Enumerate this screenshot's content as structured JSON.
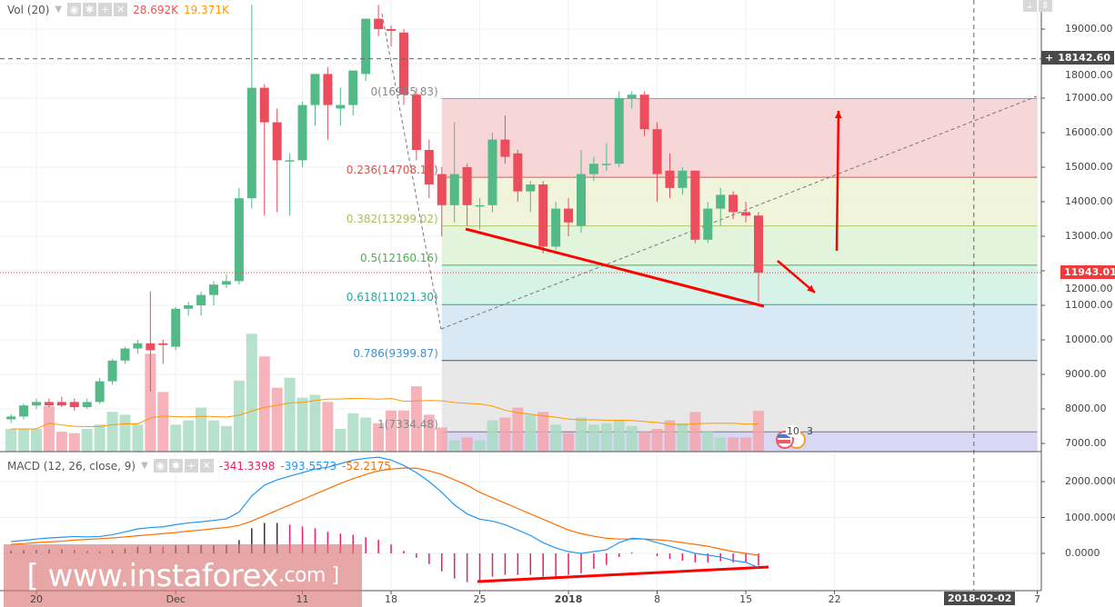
{
  "vol_legend": {
    "title": "Vol (20)",
    "value": "28.692K",
    "ma_value": "19.371K",
    "value_color": "#ef5350",
    "ma_color": "#ff9800"
  },
  "macd_legend": {
    "title": "MACD (12, 26, close, 9)",
    "hist": "-341.3398",
    "macd": "-393.5573",
    "signal": "-52.2175",
    "hist_color": "#e91e63",
    "macd_color": "#2196f3",
    "signal_color": "#ff6d00"
  },
  "legend_buttons": [
    "eye-icon",
    "gear-icon",
    "plus-icon",
    "close-icon"
  ],
  "price_axis": {
    "ticks": [
      "19000.00",
      "18000.00",
      "17000.00",
      "16000.00",
      "15000.00",
      "14000.00",
      "13000.00",
      "12000.00",
      "11000.00",
      "10000.00",
      "9000.00",
      "8000.00",
      "7000.00"
    ],
    "tick_values": [
      19000,
      18000,
      17000,
      16000,
      15000,
      14000,
      13000,
      12000,
      11000,
      10000,
      9000,
      8000,
      7000
    ],
    "crosshair_label": "18142.60",
    "crosshair_value": 18142.6,
    "last_price": "11943.01",
    "last_value": 11943.01
  },
  "macd_axis": {
    "ticks": [
      "2000.0000",
      "1000.0000",
      "0.0000"
    ],
    "tick_values": [
      2000,
      1000,
      0
    ]
  },
  "time_axis": {
    "ticks": [
      {
        "label": "20",
        "date": "2017-11-20"
      },
      {
        "label": "Dec",
        "date": "2017-12-01"
      },
      {
        "label": "11",
        "date": "2017-12-11"
      },
      {
        "label": "18",
        "date": "2017-12-18"
      },
      {
        "label": "25",
        "date": "2017-12-25"
      },
      {
        "label": "2018",
        "date": "2018-01-01"
      },
      {
        "label": "8",
        "date": "2018-01-08"
      },
      {
        "label": "15",
        "date": "2018-01-15"
      },
      {
        "label": "22",
        "date": "2018-01-22"
      },
      {
        "label": "7",
        "date": "2018-02-07"
      }
    ],
    "crosshair_label": "2018-02-02",
    "crosshair_date": "2018-02-02"
  },
  "fib": {
    "start_date": "2017-12-22",
    "end_date": "2018-02-07",
    "levels": [
      {
        "label": "0(16985.83)",
        "price": 16985.83,
        "line": "#9e9e9e",
        "text": "#888888",
        "fill": "#f5d2d2"
      },
      {
        "label": "0.236(14708.11)",
        "price": 14708.11,
        "line": "#e05858",
        "text": "#d9534f",
        "fill": "#edf3d7"
      },
      {
        "label": "0.382(13299.02)",
        "price": 13299.02,
        "line": "#b5c96a",
        "text": "#a9bf5a",
        "fill": "#dff3d8"
      },
      {
        "label": "0.5(12160.16)",
        "price": 12160.16,
        "line": "#4caf50",
        "text": "#4caf50",
        "fill": "#d3f1e4"
      },
      {
        "label": "0.618(11021.30)",
        "price": 11021.3,
        "line": "#26a69a",
        "text": "#26a69a",
        "fill": "#d4e6f3"
      },
      {
        "label": "0.786(9399.87)",
        "price": 9399.87,
        "line": "#555555",
        "text": "#3f8fd0",
        "fill": "#e5e5e5"
      },
      {
        "label": "1(7334.48)",
        "price": 7334.48,
        "line": "#777777",
        "text": "#888888",
        "fill": "#d4d4f4"
      }
    ]
  },
  "colors": {
    "up": "#53b987",
    "down": "#eb4d5c",
    "up_vol": "#a9dcc3",
    "down_vol": "#f5a6ae",
    "vol_ma": "#ff9800",
    "annotation": "#ff0000"
  },
  "events_badge": {
    "count_a": "10",
    "count_b": "3"
  },
  "watermark": {
    "main": "[  www.instaforex",
    "suffix": ".com ]"
  },
  "chart_data": {
    "type": "candlestick",
    "start_date": "2017-11-18",
    "ohlc": [
      [
        7700,
        7850,
        7600,
        7780
      ],
      [
        7780,
        8150,
        7700,
        8100
      ],
      [
        8100,
        8300,
        8000,
        8200
      ],
      [
        8200,
        8300,
        8050,
        8100
      ],
      [
        8200,
        8350,
        8050,
        8100
      ],
      [
        8200,
        8300,
        7950,
        8050
      ],
      [
        8050,
        8300,
        8000,
        8200
      ],
      [
        8200,
        8900,
        8150,
        8800
      ],
      [
        8800,
        9450,
        8700,
        9400
      ],
      [
        9400,
        9800,
        9300,
        9750
      ],
      [
        9750,
        10000,
        9600,
        9900
      ],
      [
        9900,
        11400,
        8500,
        9700
      ],
      [
        9900,
        10000,
        9300,
        9850
      ],
      [
        9800,
        10950,
        9700,
        10900
      ],
      [
        10900,
        11100,
        10700,
        11000
      ],
      [
        11000,
        11400,
        10700,
        11300
      ],
      [
        11300,
        11700,
        11000,
        11600
      ],
      [
        11600,
        11900,
        11500,
        11700
      ],
      [
        11700,
        14400,
        11600,
        14100
      ],
      [
        14100,
        19700,
        13800,
        17300
      ],
      [
        17300,
        17400,
        13600,
        16300
      ],
      [
        16300,
        16700,
        13700,
        15200
      ],
      [
        15200,
        15400,
        13600,
        15200
      ],
      [
        15200,
        16900,
        15000,
        16800
      ],
      [
        16800,
        17700,
        16200,
        17700
      ],
      [
        17700,
        17900,
        15800,
        16800
      ],
      [
        16700,
        17300,
        16200,
        16800
      ],
      [
        16800,
        17800,
        16500,
        17800
      ],
      [
        17700,
        19300,
        17500,
        19300
      ],
      [
        19300,
        19700,
        18800,
        19000
      ],
      [
        19000,
        19100,
        18500,
        18950
      ],
      [
        18900,
        19000,
        16800,
        17100
      ],
      [
        17100,
        17300,
        15200,
        15500
      ],
      [
        15500,
        15800,
        14100,
        14500
      ],
      [
        14800,
        15000,
        13000,
        13900
      ],
      [
        13900,
        16300,
        13400,
        14800
      ],
      [
        15000,
        15100,
        13300,
        13900
      ],
      [
        13900,
        14100,
        13200,
        13900
      ],
      [
        13900,
        16000,
        13700,
        15800
      ],
      [
        15800,
        16500,
        15100,
        15300
      ],
      [
        15400,
        15500,
        14000,
        14300
      ],
      [
        14300,
        14600,
        13700,
        14500
      ],
      [
        14500,
        14600,
        12500,
        12700
      ],
      [
        12700,
        14000,
        12600,
        13800
      ],
      [
        13800,
        14100,
        13000,
        13400
      ],
      [
        13300,
        15500,
        13100,
        14800
      ],
      [
        14800,
        15300,
        14600,
        15100
      ],
      [
        15100,
        15700,
        14900,
        15100
      ],
      [
        15100,
        17200,
        15000,
        17000
      ],
      [
        17000,
        17200,
        16700,
        17100
      ],
      [
        17100,
        17200,
        15900,
        16100
      ],
      [
        16100,
        16300,
        14000,
        14800
      ],
      [
        14900,
        15400,
        14100,
        14400
      ],
      [
        14400,
        15000,
        14200,
        14900
      ],
      [
        14900,
        14900,
        12800,
        12900
      ],
      [
        12900,
        14000,
        12800,
        13800
      ],
      [
        13800,
        14400,
        13300,
        14200
      ],
      [
        14200,
        14300,
        13500,
        13700
      ],
      [
        13700,
        14000,
        13400,
        13600
      ],
      [
        13600,
        13700,
        11100,
        11943
      ]
    ],
    "volume_k": [
      16,
      16,
      16,
      32,
      14,
      13,
      16,
      19,
      28,
      26,
      19,
      69,
      42,
      19,
      22,
      31,
      22,
      18,
      50,
      83,
      67,
      45,
      52,
      38,
      40,
      35,
      16,
      27,
      24,
      20,
      29,
      29,
      46,
      26,
      17,
      8,
      10,
      8,
      22,
      24,
      31,
      26,
      28,
      19,
      13,
      24,
      19,
      20,
      22,
      18,
      14,
      16,
      22,
      20,
      28,
      14,
      10,
      10,
      10,
      28.692
    ],
    "macd": [
      330,
      360,
      400,
      430,
      450,
      470,
      460,
      470,
      520,
      600,
      680,
      720,
      740,
      800,
      850,
      880,
      920,
      960,
      1150,
      1600,
      1900,
      2050,
      2150,
      2250,
      2350,
      2400,
      2500,
      2600,
      2650,
      2680,
      2600,
      2450,
      2250,
      2000,
      1700,
      1350,
      1100,
      950,
      900,
      800,
      650,
      500,
      300,
      150,
      50,
      0,
      50,
      100,
      300,
      420,
      400,
      300,
      200,
      100,
      0,
      -50,
      -100,
      -200,
      -250,
      -393.5573
    ],
    "signal": [
      250,
      270,
      300,
      320,
      340,
      370,
      390,
      410,
      430,
      460,
      490,
      520,
      550,
      580,
      620,
      650,
      690,
      720,
      780,
      900,
      1050,
      1200,
      1350,
      1500,
      1650,
      1800,
      1950,
      2080,
      2200,
      2300,
      2350,
      2380,
      2370,
      2300,
      2200,
      2050,
      1900,
      1700,
      1550,
      1400,
      1250,
      1100,
      950,
      800,
      650,
      550,
      480,
      420,
      400,
      400,
      400,
      380,
      350,
      300,
      250,
      200,
      120,
      50,
      0,
      -52.2175
    ]
  }
}
